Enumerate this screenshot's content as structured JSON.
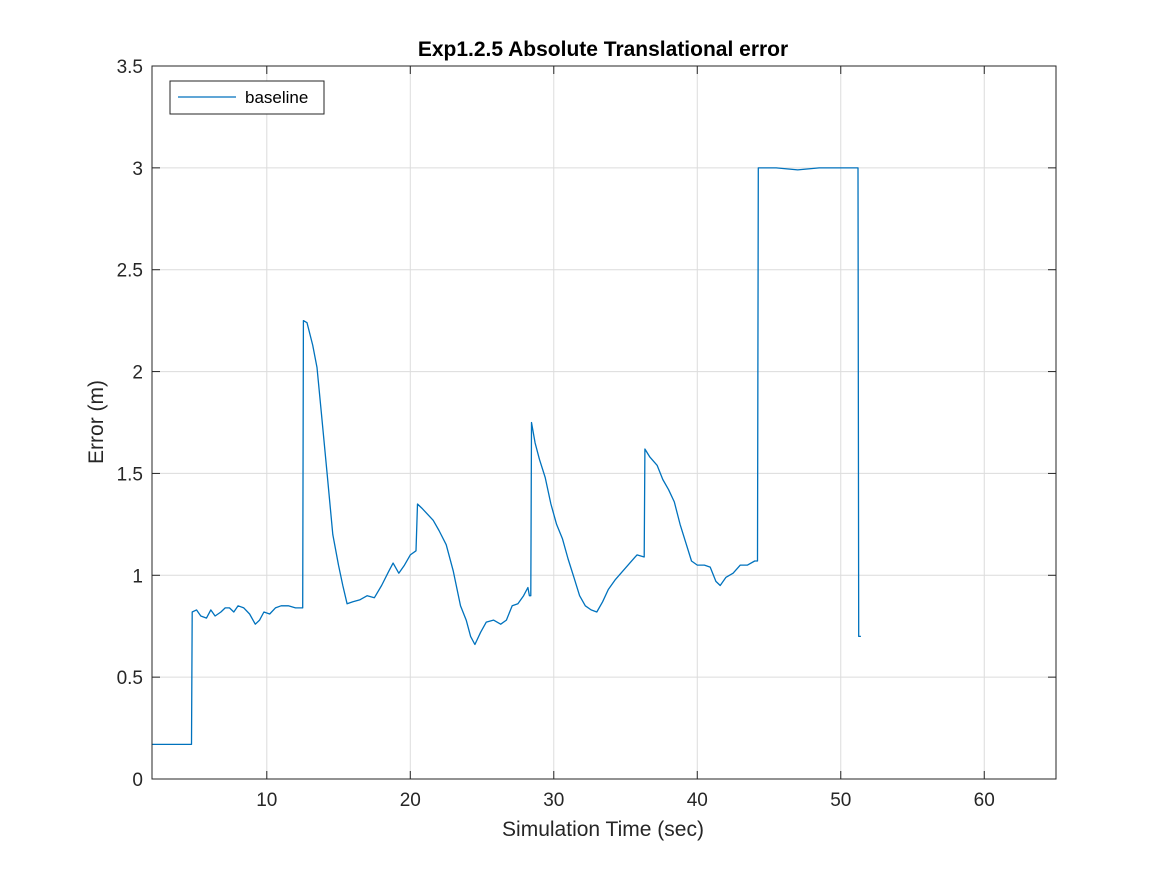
{
  "chart_data": {
    "type": "line",
    "title": "Exp1.2.5 Absolute Translational error",
    "xlabel": "Simulation Time (sec)",
    "ylabel": "Error (m)",
    "xlim": [
      2,
      65
    ],
    "ylim": [
      0,
      3.5
    ],
    "xticks": [
      10,
      20,
      30,
      40,
      50,
      60
    ],
    "xtick_labels": [
      "10",
      "20",
      "30",
      "40",
      "50",
      "60"
    ],
    "yticks": [
      0,
      0.5,
      1,
      1.5,
      2,
      2.5,
      3,
      3.5
    ],
    "ytick_labels": [
      "0",
      "0.5",
      "1",
      "1.5",
      "2",
      "2.5",
      "3",
      "3.5"
    ],
    "grid": true,
    "legend": {
      "position": "top-left",
      "entries": [
        "baseline"
      ]
    },
    "series": [
      {
        "name": "baseline",
        "color": "#0072BD",
        "points": [
          [
            2.0,
            0.17
          ],
          [
            3.0,
            0.17
          ],
          [
            4.0,
            0.17
          ],
          [
            4.75,
            0.17
          ],
          [
            4.8,
            0.82
          ],
          [
            5.1,
            0.83
          ],
          [
            5.4,
            0.8
          ],
          [
            5.8,
            0.79
          ],
          [
            6.1,
            0.83
          ],
          [
            6.4,
            0.8
          ],
          [
            6.8,
            0.82
          ],
          [
            7.1,
            0.84
          ],
          [
            7.4,
            0.84
          ],
          [
            7.7,
            0.82
          ],
          [
            8.0,
            0.85
          ],
          [
            8.4,
            0.84
          ],
          [
            8.8,
            0.81
          ],
          [
            9.2,
            0.76
          ],
          [
            9.5,
            0.78
          ],
          [
            9.8,
            0.82
          ],
          [
            10.2,
            0.81
          ],
          [
            10.6,
            0.84
          ],
          [
            11.0,
            0.85
          ],
          [
            11.5,
            0.85
          ],
          [
            12.0,
            0.84
          ],
          [
            12.5,
            0.84
          ],
          [
            12.55,
            2.25
          ],
          [
            12.8,
            2.24
          ],
          [
            13.2,
            2.13
          ],
          [
            13.5,
            2.02
          ],
          [
            13.8,
            1.8
          ],
          [
            14.2,
            1.5
          ],
          [
            14.6,
            1.2
          ],
          [
            15.0,
            1.05
          ],
          [
            15.3,
            0.95
          ],
          [
            15.6,
            0.86
          ],
          [
            16.0,
            0.87
          ],
          [
            16.5,
            0.88
          ],
          [
            17.0,
            0.9
          ],
          [
            17.5,
            0.89
          ],
          [
            18.0,
            0.95
          ],
          [
            18.5,
            1.02
          ],
          [
            18.8,
            1.06
          ],
          [
            19.2,
            1.01
          ],
          [
            19.6,
            1.05
          ],
          [
            20.0,
            1.1
          ],
          [
            20.4,
            1.12
          ],
          [
            20.5,
            1.35
          ],
          [
            20.8,
            1.33
          ],
          [
            21.2,
            1.3
          ],
          [
            21.6,
            1.27
          ],
          [
            22.0,
            1.22
          ],
          [
            22.5,
            1.15
          ],
          [
            23.0,
            1.02
          ],
          [
            23.5,
            0.85
          ],
          [
            23.9,
            0.78
          ],
          [
            24.2,
            0.7
          ],
          [
            24.5,
            0.66
          ],
          [
            24.9,
            0.72
          ],
          [
            25.3,
            0.77
          ],
          [
            25.8,
            0.78
          ],
          [
            26.3,
            0.76
          ],
          [
            26.7,
            0.78
          ],
          [
            27.1,
            0.85
          ],
          [
            27.5,
            0.86
          ],
          [
            27.9,
            0.9
          ],
          [
            28.2,
            0.94
          ],
          [
            28.3,
            0.9
          ],
          [
            28.4,
            0.9
          ],
          [
            28.45,
            1.75
          ],
          [
            28.7,
            1.65
          ],
          [
            29.0,
            1.57
          ],
          [
            29.4,
            1.48
          ],
          [
            29.8,
            1.35
          ],
          [
            30.2,
            1.25
          ],
          [
            30.6,
            1.18
          ],
          [
            31.0,
            1.08
          ],
          [
            31.4,
            0.99
          ],
          [
            31.8,
            0.9
          ],
          [
            32.2,
            0.85
          ],
          [
            32.6,
            0.83
          ],
          [
            33.0,
            0.82
          ],
          [
            33.4,
            0.87
          ],
          [
            33.8,
            0.93
          ],
          [
            34.3,
            0.98
          ],
          [
            34.8,
            1.02
          ],
          [
            35.3,
            1.06
          ],
          [
            35.8,
            1.1
          ],
          [
            36.3,
            1.09
          ],
          [
            36.35,
            1.62
          ],
          [
            36.7,
            1.58
          ],
          [
            37.2,
            1.54
          ],
          [
            37.6,
            1.47
          ],
          [
            38.0,
            1.42
          ],
          [
            38.4,
            1.36
          ],
          [
            38.8,
            1.25
          ],
          [
            39.2,
            1.16
          ],
          [
            39.6,
            1.07
          ],
          [
            40.0,
            1.05
          ],
          [
            40.5,
            1.05
          ],
          [
            40.9,
            1.04
          ],
          [
            41.3,
            0.97
          ],
          [
            41.6,
            0.95
          ],
          [
            42.0,
            0.99
          ],
          [
            42.5,
            1.01
          ],
          [
            43.0,
            1.05
          ],
          [
            43.5,
            1.05
          ],
          [
            44.0,
            1.07
          ],
          [
            44.2,
            1.07
          ],
          [
            44.25,
            3.0
          ],
          [
            45.5,
            3.0
          ],
          [
            47.0,
            2.99
          ],
          [
            48.5,
            3.0
          ],
          [
            50.0,
            3.0
          ],
          [
            51.2,
            3.0
          ],
          [
            51.25,
            0.7
          ],
          [
            51.4,
            0.7
          ]
        ]
      }
    ]
  }
}
